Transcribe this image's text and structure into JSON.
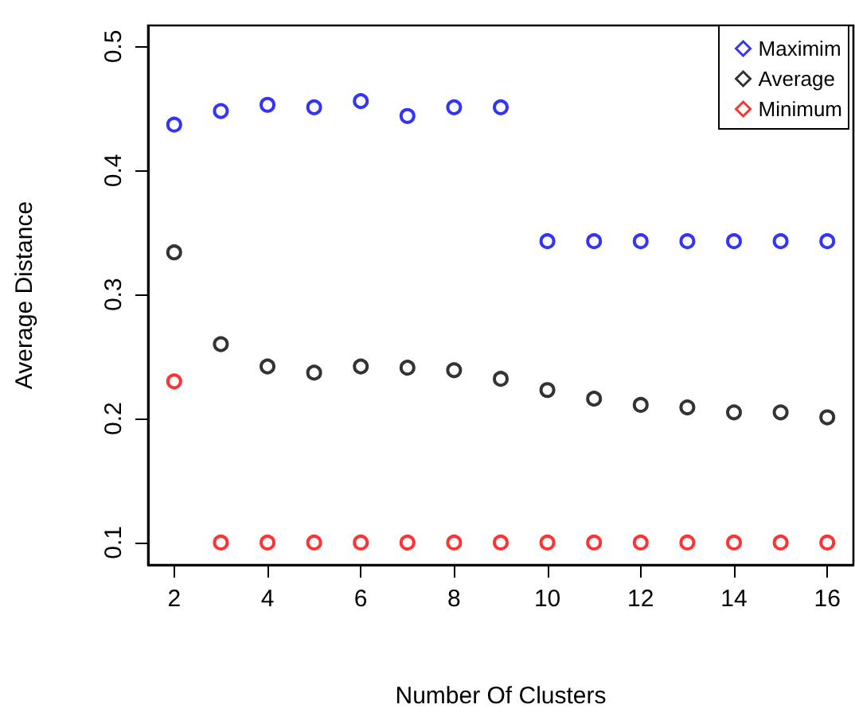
{
  "chart_data": {
    "type": "scatter",
    "xlabel": "Number Of Clusters",
    "ylabel": "Average Distance",
    "x": [
      2,
      3,
      4,
      5,
      6,
      7,
      8,
      9,
      10,
      11,
      12,
      13,
      14,
      15,
      16
    ],
    "series": [
      {
        "name": "Maximim",
        "color": "#0000ff",
        "values": [
          0.437,
          0.448,
          0.453,
          0.451,
          0.456,
          0.444,
          0.451,
          0.451,
          0.343,
          0.343,
          0.343,
          0.343,
          0.343,
          0.343,
          0.343
        ]
      },
      {
        "name": "Average",
        "color": "#000000",
        "values": [
          0.334,
          0.26,
          0.242,
          0.237,
          0.242,
          0.241,
          0.239,
          0.232,
          0.223,
          0.216,
          0.211,
          0.209,
          0.205,
          0.205,
          0.201
        ]
      },
      {
        "name": "Minimum",
        "color": "#ff0000",
        "values": [
          0.23,
          0.1,
          0.1,
          0.1,
          0.1,
          0.1,
          0.1,
          0.1,
          0.1,
          0.1,
          0.1,
          0.1,
          0.1,
          0.1,
          0.1
        ]
      }
    ],
    "xlim": [
      1.44,
      16.56
    ],
    "ylim": [
      0.082,
      0.517
    ],
    "xticks": [
      2,
      4,
      6,
      8,
      10,
      12,
      14,
      16
    ],
    "yticks": [
      0.1,
      0.2,
      0.3,
      0.4,
      0.5
    ],
    "marker": "circle",
    "grid": false,
    "legend": "top right"
  }
}
